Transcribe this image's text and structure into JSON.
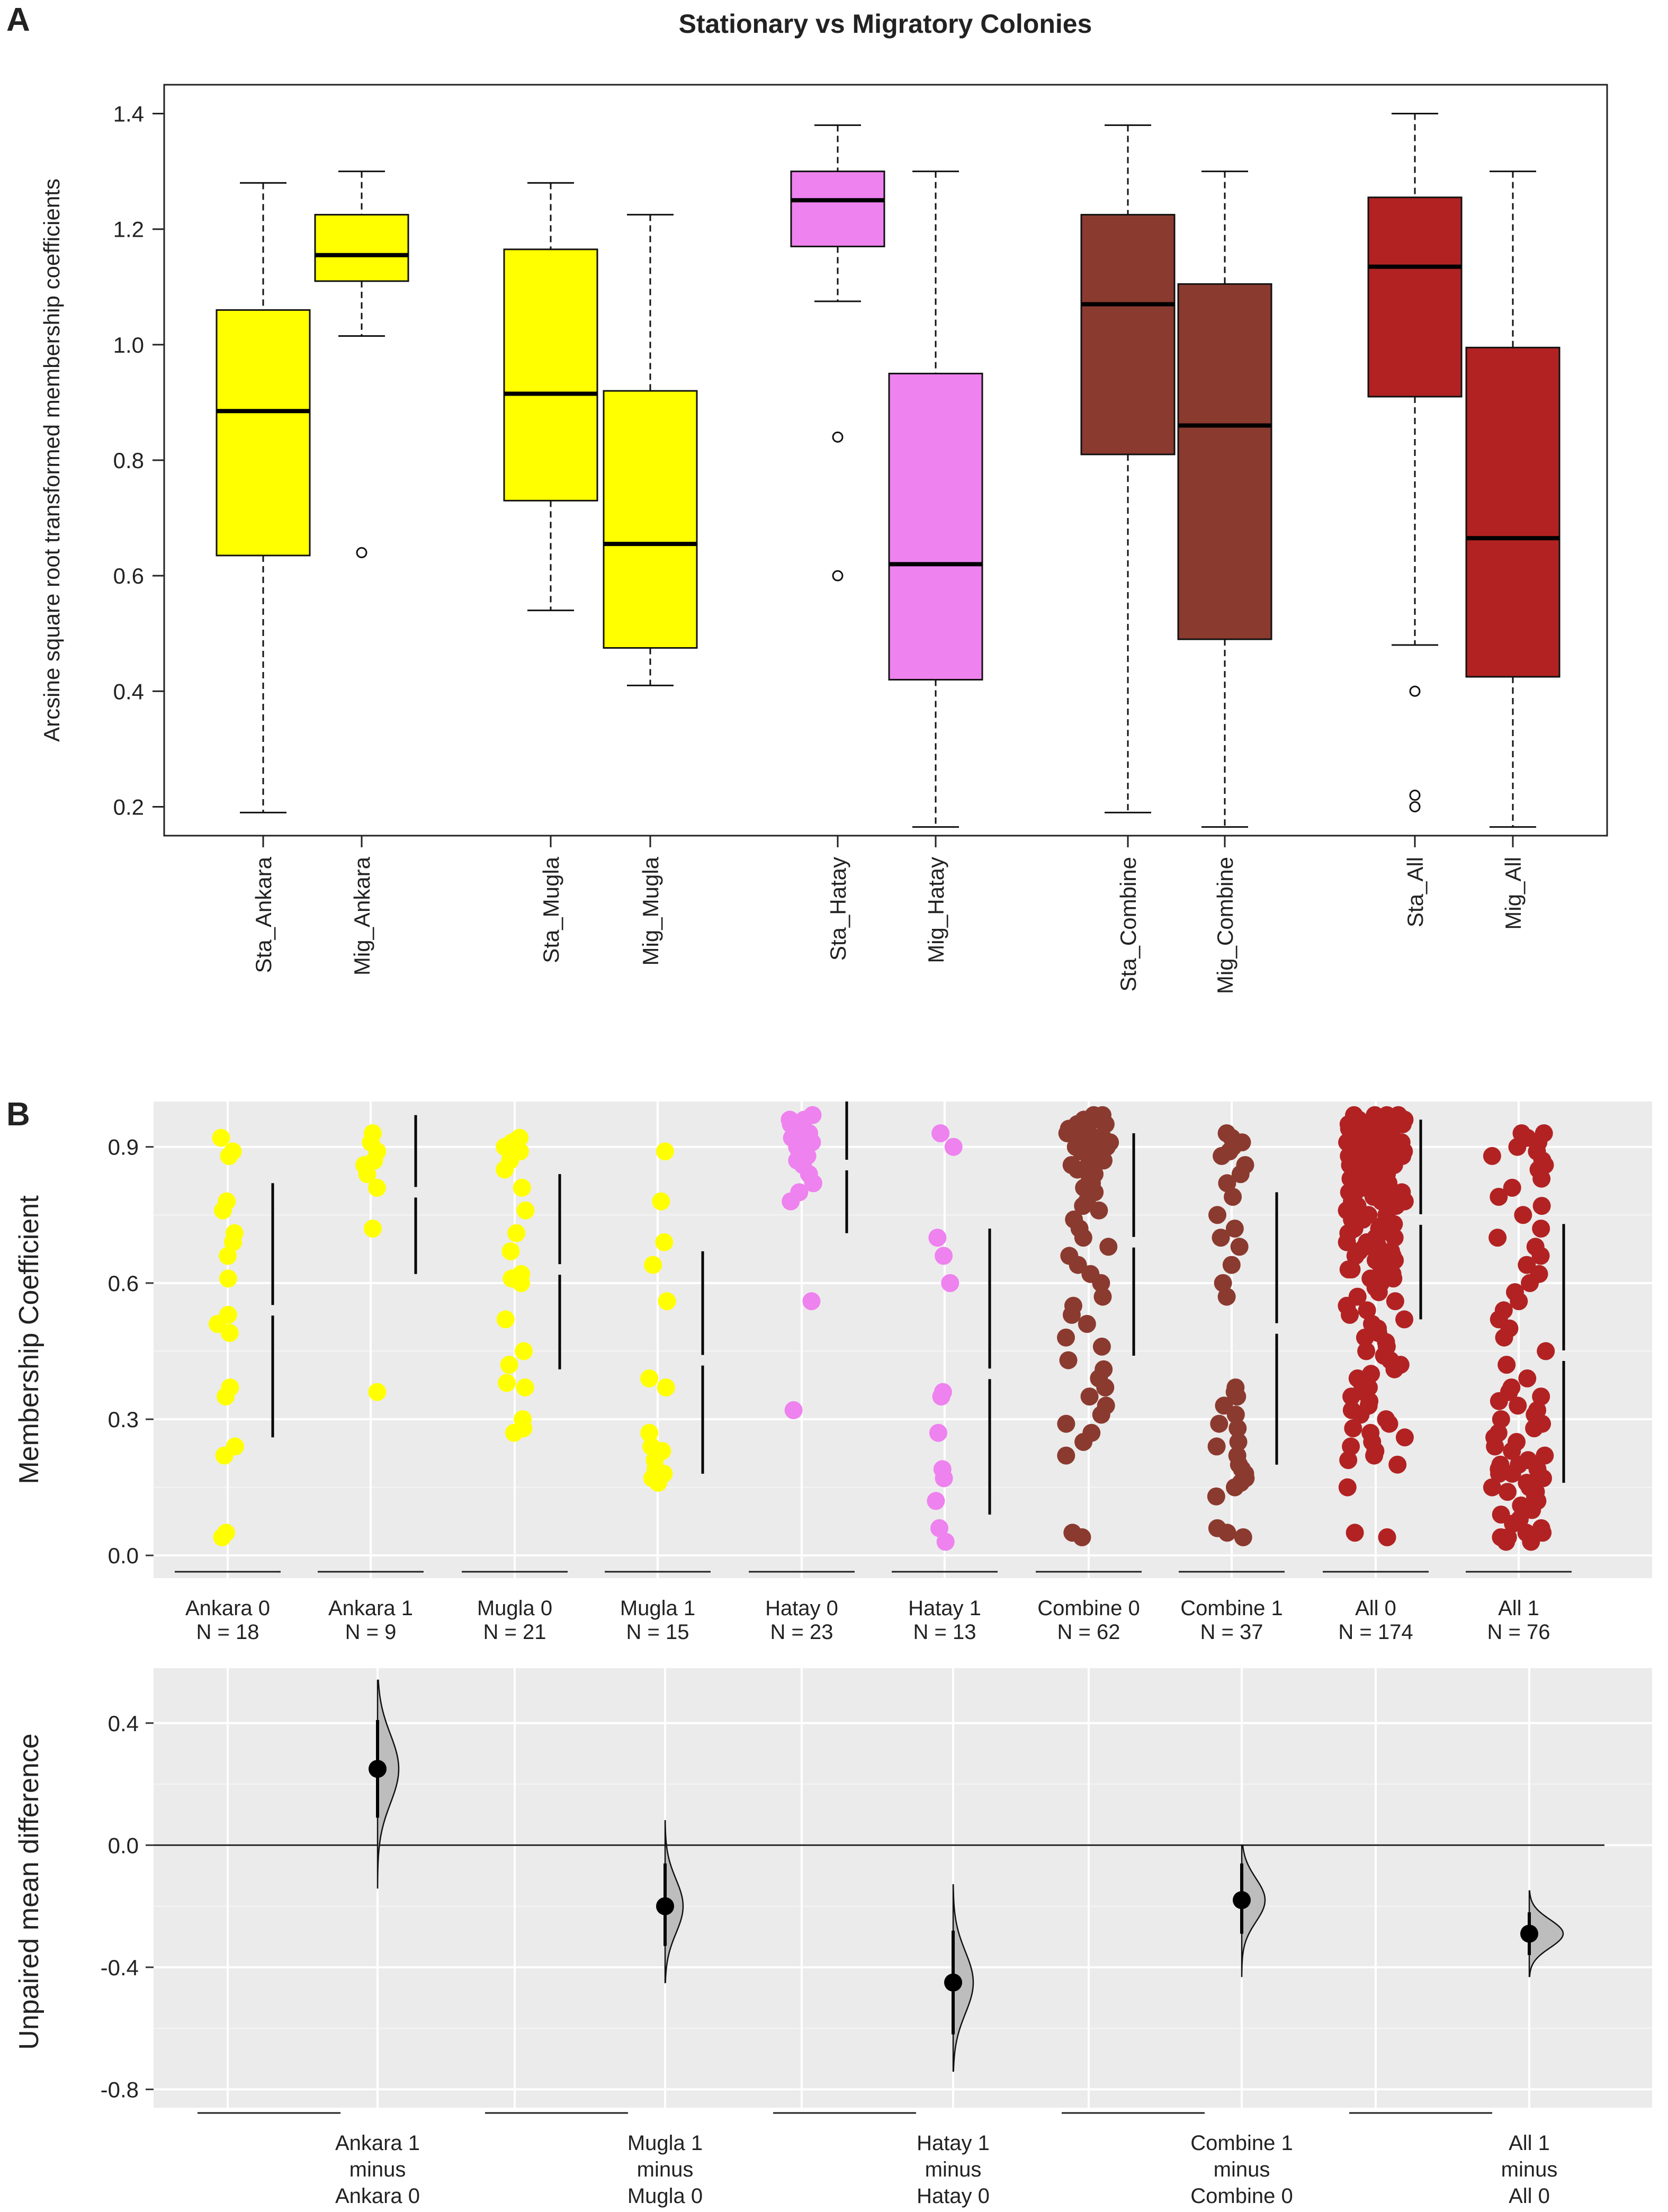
{
  "panel_labels": {
    "a": "A",
    "b": "B"
  },
  "chart_data": [
    {
      "type": "box",
      "panel": "A",
      "title": "Stationary vs Migratory Colonies",
      "ylabel": "Arcsine square root transformed membership coefficients",
      "ylim": [
        0.15,
        1.45
      ],
      "yticks": [
        "0.2",
        "0.4",
        "0.6",
        "0.8",
        "1.0",
        "1.2",
        "1.4"
      ],
      "categories": [
        "Sta_Ankara",
        "Mig_Ankara",
        "Sta_Mugla",
        "Mig_Mugla",
        "Sta_Hatay",
        "Mig_Hatay",
        "Sta_Combine",
        "Mig_Combine",
        "Sta_All",
        "Mig_All"
      ],
      "colors": [
        "#ffff00",
        "#ffff00",
        "#ffff00",
        "#ffff00",
        "#ee82ee",
        "#ee82ee",
        "#8b3a2f",
        "#8b3a2f",
        "#b22222",
        "#b22222"
      ],
      "boxes": [
        {
          "whisker_low": 0.19,
          "q1": 0.635,
          "median": 0.885,
          "q3": 1.06,
          "whisker_high": 1.28,
          "outliers": []
        },
        {
          "whisker_low": 1.015,
          "q1": 1.11,
          "median": 1.155,
          "q3": 1.225,
          "whisker_high": 1.3,
          "outliers": [
            0.64
          ]
        },
        {
          "whisker_low": 0.54,
          "q1": 0.73,
          "median": 0.915,
          "q3": 1.165,
          "whisker_high": 1.28,
          "outliers": []
        },
        {
          "whisker_low": 0.41,
          "q1": 0.475,
          "median": 0.655,
          "q3": 0.92,
          "whisker_high": 1.225,
          "outliers": []
        },
        {
          "whisker_low": 1.075,
          "q1": 1.17,
          "median": 1.25,
          "q3": 1.3,
          "whisker_high": 1.38,
          "outliers": [
            0.84,
            0.6
          ]
        },
        {
          "whisker_low": 0.165,
          "q1": 0.42,
          "median": 0.62,
          "q3": 0.95,
          "whisker_high": 1.3,
          "outliers": []
        },
        {
          "whisker_low": 0.19,
          "q1": 0.81,
          "median": 1.07,
          "q3": 1.225,
          "whisker_high": 1.38,
          "outliers": []
        },
        {
          "whisker_low": 0.165,
          "q1": 0.49,
          "median": 0.86,
          "q3": 1.105,
          "whisker_high": 1.3,
          "outliers": []
        },
        {
          "whisker_low": 0.48,
          "q1": 0.91,
          "median": 1.135,
          "q3": 1.255,
          "whisker_high": 1.4,
          "outliers": [
            0.4,
            0.22,
            0.2
          ]
        },
        {
          "whisker_low": 0.165,
          "q1": 0.425,
          "median": 0.665,
          "q3": 0.995,
          "whisker_high": 1.3,
          "outliers": []
        }
      ]
    },
    {
      "type": "scatter",
      "panel": "B (top)",
      "ylabel": "Membership Coefficient",
      "ylim": [
        -0.05,
        1.0
      ],
      "yticks": [
        "0.0",
        "0.3",
        "0.6",
        "0.9"
      ],
      "groups": [
        {
          "label": "Ankara 0",
          "n_label": "N = 18",
          "color": "#ffff00",
          "mean": 0.54,
          "sd_low": 0.26,
          "sd_high": 0.82,
          "values": [
            0.92,
            0.89,
            0.88,
            0.78,
            0.76,
            0.71,
            0.69,
            0.66,
            0.61,
            0.53,
            0.51,
            0.49,
            0.37,
            0.35,
            0.24,
            0.22,
            0.05,
            0.04
          ]
        },
        {
          "label": "Ankara 1",
          "n_label": "N = 9",
          "color": "#ffff00",
          "mean": 0.8,
          "sd_low": 0.62,
          "sd_high": 0.97,
          "values": [
            0.93,
            0.91,
            0.89,
            0.87,
            0.86,
            0.84,
            0.81,
            0.72,
            0.36
          ]
        },
        {
          "label": "Mugla 0",
          "n_label": "N = 21",
          "color": "#ffff00",
          "mean": 0.63,
          "sd_low": 0.41,
          "sd_high": 0.84,
          "values": [
            0.92,
            0.91,
            0.89,
            0.87,
            0.85,
            0.81,
            0.76,
            0.71,
            0.67,
            0.62,
            0.61,
            0.6,
            0.52,
            0.45,
            0.42,
            0.38,
            0.37,
            0.3,
            0.28,
            0.27,
            0.9
          ]
        },
        {
          "label": "Mugla 1",
          "n_label": "N = 15",
          "color": "#ffff00",
          "mean": 0.43,
          "sd_low": 0.18,
          "sd_high": 0.67,
          "values": [
            0.89,
            0.78,
            0.69,
            0.64,
            0.56,
            0.39,
            0.37,
            0.27,
            0.24,
            0.23,
            0.21,
            0.19,
            0.18,
            0.17,
            0.16
          ]
        },
        {
          "label": "Hatay 0",
          "n_label": "N = 23",
          "color": "#ee82ee",
          "mean": 0.86,
          "sd_low": 0.71,
          "sd_high": 1.0,
          "values": [
            0.97,
            0.96,
            0.96,
            0.95,
            0.95,
            0.94,
            0.93,
            0.93,
            0.92,
            0.91,
            0.91,
            0.9,
            0.9,
            0.89,
            0.88,
            0.87,
            0.86,
            0.84,
            0.82,
            0.8,
            0.78,
            0.56,
            0.32
          ]
        },
        {
          "label": "Hatay 1",
          "n_label": "N = 13",
          "color": "#ee82ee",
          "mean": 0.4,
          "sd_low": 0.09,
          "sd_high": 0.72,
          "values": [
            0.93,
            0.9,
            0.7,
            0.66,
            0.6,
            0.36,
            0.35,
            0.27,
            0.19,
            0.17,
            0.12,
            0.06,
            0.03
          ]
        },
        {
          "label": "Combine 0",
          "n_label": "N = 62",
          "color": "#8b3a2f",
          "mean": 0.69,
          "sd_low": 0.44,
          "sd_high": 0.93,
          "values": [
            0.97,
            0.97,
            0.96,
            0.96,
            0.95,
            0.95,
            0.95,
            0.94,
            0.94,
            0.93,
            0.93,
            0.92,
            0.92,
            0.92,
            0.91,
            0.91,
            0.9,
            0.9,
            0.9,
            0.89,
            0.89,
            0.88,
            0.88,
            0.87,
            0.86,
            0.86,
            0.85,
            0.84,
            0.83,
            0.82,
            0.81,
            0.8,
            0.78,
            0.77,
            0.76,
            0.74,
            0.72,
            0.7,
            0.68,
            0.66,
            0.64,
            0.62,
            0.6,
            0.57,
            0.55,
            0.53,
            0.51,
            0.48,
            0.46,
            0.43,
            0.41,
            0.39,
            0.37,
            0.35,
            0.33,
            0.31,
            0.29,
            0.27,
            0.25,
            0.22,
            0.05,
            0.04
          ]
        },
        {
          "label": "Combine 1",
          "n_label": "N = 37",
          "color": "#8b3a2f",
          "mean": 0.5,
          "sd_low": 0.2,
          "sd_high": 0.8,
          "values": [
            0.93,
            0.92,
            0.91,
            0.9,
            0.89,
            0.88,
            0.86,
            0.84,
            0.82,
            0.79,
            0.75,
            0.72,
            0.7,
            0.68,
            0.64,
            0.6,
            0.57,
            0.37,
            0.36,
            0.35,
            0.33,
            0.31,
            0.29,
            0.28,
            0.25,
            0.24,
            0.22,
            0.2,
            0.19,
            0.18,
            0.17,
            0.16,
            0.15,
            0.13,
            0.06,
            0.05,
            0.04
          ]
        },
        {
          "label": "All 0",
          "n_label": "N = 174",
          "color": "#b22222",
          "mean": 0.74,
          "sd_low": 0.52,
          "sd_high": 0.96,
          "values": [
            0.97,
            0.97,
            0.97,
            0.97,
            0.97,
            0.96,
            0.96,
            0.96,
            0.96,
            0.96,
            0.96,
            0.95,
            0.95,
            0.95,
            0.95,
            0.95,
            0.95,
            0.94,
            0.94,
            0.94,
            0.94,
            0.94,
            0.94,
            0.93,
            0.93,
            0.93,
            0.93,
            0.93,
            0.92,
            0.92,
            0.92,
            0.92,
            0.92,
            0.91,
            0.91,
            0.91,
            0.91,
            0.91,
            0.9,
            0.9,
            0.9,
            0.9,
            0.9,
            0.89,
            0.89,
            0.89,
            0.89,
            0.88,
            0.88,
            0.88,
            0.88,
            0.87,
            0.87,
            0.87,
            0.86,
            0.86,
            0.86,
            0.85,
            0.85,
            0.85,
            0.84,
            0.84,
            0.83,
            0.83,
            0.82,
            0.82,
            0.81,
            0.81,
            0.8,
            0.8,
            0.79,
            0.79,
            0.78,
            0.78,
            0.77,
            0.76,
            0.76,
            0.75,
            0.74,
            0.74,
            0.73,
            0.72,
            0.72,
            0.71,
            0.7,
            0.7,
            0.69,
            0.68,
            0.67,
            0.66,
            0.66,
            0.65,
            0.64,
            0.63,
            0.62,
            0.61,
            0.6,
            0.59,
            0.58,
            0.57,
            0.56,
            0.55,
            0.54,
            0.53,
            0.52,
            0.51,
            0.5,
            0.49,
            0.48,
            0.47,
            0.46,
            0.45,
            0.44,
            0.43,
            0.42,
            0.41,
            0.4,
            0.39,
            0.38,
            0.37,
            0.36,
            0.35,
            0.34,
            0.33,
            0.32,
            0.31,
            0.3,
            0.29,
            0.28,
            0.27,
            0.26,
            0.25,
            0.24,
            0.23,
            0.22,
            0.21,
            0.2,
            0.15,
            0.05,
            0.04,
            0.93,
            0.92,
            0.91,
            0.9,
            0.89,
            0.88,
            0.87,
            0.86,
            0.85,
            0.84,
            0.83,
            0.82,
            0.81,
            0.8,
            0.79,
            0.78,
            0.77,
            0.76,
            0.75,
            0.74,
            0.73,
            0.72,
            0.71,
            0.7,
            0.69,
            0.68,
            0.67,
            0.66,
            0.65,
            0.64,
            0.63,
            0.62,
            0.61,
            0.6
          ]
        },
        {
          "label": "All 1",
          "n_label": "N = 76",
          "color": "#b22222",
          "mean": 0.44,
          "sd_low": 0.16,
          "sd_high": 0.73,
          "values": [
            0.93,
            0.93,
            0.92,
            0.91,
            0.9,
            0.89,
            0.88,
            0.87,
            0.86,
            0.85,
            0.83,
            0.81,
            0.79,
            0.77,
            0.75,
            0.72,
            0.7,
            0.68,
            0.66,
            0.64,
            0.62,
            0.6,
            0.58,
            0.56,
            0.54,
            0.52,
            0.5,
            0.48,
            0.45,
            0.42,
            0.39,
            0.37,
            0.36,
            0.35,
            0.34,
            0.33,
            0.32,
            0.31,
            0.3,
            0.29,
            0.28,
            0.27,
            0.26,
            0.25,
            0.24,
            0.23,
            0.22,
            0.21,
            0.2,
            0.2,
            0.19,
            0.19,
            0.18,
            0.18,
            0.17,
            0.17,
            0.16,
            0.16,
            0.15,
            0.15,
            0.14,
            0.14,
            0.13,
            0.12,
            0.11,
            0.1,
            0.09,
            0.08,
            0.07,
            0.06,
            0.05,
            0.05,
            0.04,
            0.04,
            0.03,
            0.03
          ]
        }
      ]
    },
    {
      "type": "estimation",
      "panel": "B (bottom)",
      "ylabel": "Unpaired mean difference",
      "ylim": [
        -0.86,
        0.58
      ],
      "yticks": [
        "-0.8",
        "-0.4",
        "0.0",
        "0.4"
      ],
      "contrasts": [
        {
          "label_lines": [
            "Ankara 1",
            "minus",
            "Ankara 0"
          ],
          "mean_diff": 0.25,
          "ci_low": 0.09,
          "ci_high": 0.41,
          "dist_low": -0.14,
          "dist_high": 0.54,
          "width": 1.0
        },
        {
          "label_lines": [
            "Mugla 1",
            "minus",
            "Mugla 0"
          ],
          "mean_diff": -0.2,
          "ci_low": -0.33,
          "ci_high": -0.06,
          "dist_low": -0.45,
          "dist_high": 0.08,
          "width": 0.85
        },
        {
          "label_lines": [
            "Hatay 1",
            "minus",
            "Hatay 0"
          ],
          "mean_diff": -0.45,
          "ci_low": -0.62,
          "ci_high": -0.28,
          "dist_low": -0.74,
          "dist_high": -0.13,
          "width": 0.95
        },
        {
          "label_lines": [
            "Combine 1",
            "minus",
            "Combine 0"
          ],
          "mean_diff": -0.18,
          "ci_low": -0.29,
          "ci_high": -0.06,
          "dist_low": -0.43,
          "dist_high": 0.0,
          "width": 1.1
        },
        {
          "label_lines": [
            "All 1",
            "minus",
            "All 0"
          ],
          "mean_diff": -0.29,
          "ci_low": -0.36,
          "ci_high": -0.22,
          "dist_low": -0.43,
          "dist_high": -0.15,
          "width": 1.6
        }
      ]
    }
  ]
}
